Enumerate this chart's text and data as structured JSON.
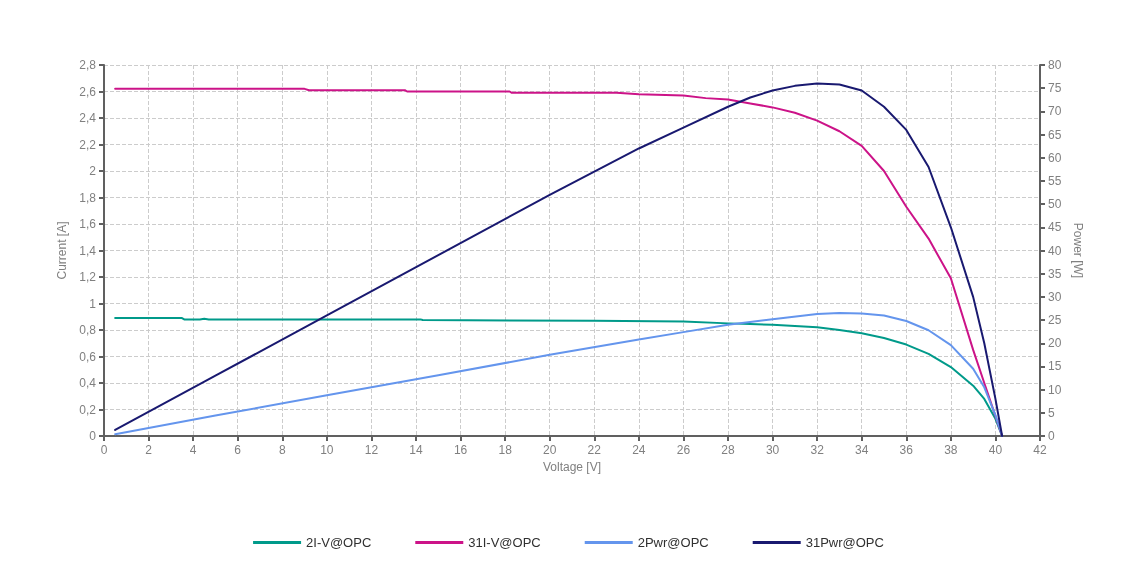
{
  "chart_data": {
    "type": "line",
    "xlabel": "Voltage [V]",
    "ylabel": "Current [A]",
    "y2label": "Power [W]",
    "xlim": [
      0,
      42
    ],
    "xticks": [
      0,
      2,
      4,
      6,
      8,
      10,
      12,
      14,
      16,
      18,
      20,
      22,
      24,
      26,
      28,
      30,
      32,
      34,
      36,
      38,
      40,
      42
    ],
    "ylim": [
      0,
      2.8
    ],
    "yticks": [
      0,
      {
        "value": 0.2,
        "label": "0,2"
      },
      {
        "value": 0.4,
        "label": "0,4"
      },
      {
        "value": 0.6,
        "label": "0,6"
      },
      {
        "value": 0.8,
        "label": "0,8"
      },
      1,
      {
        "value": 1.2,
        "label": "1,2"
      },
      {
        "value": 1.4,
        "label": "1,4"
      },
      {
        "value": 1.6,
        "label": "1,6"
      },
      {
        "value": 1.8,
        "label": "1,8"
      },
      2,
      {
        "value": 2.2,
        "label": "2,2"
      },
      {
        "value": 2.4,
        "label": "2,4"
      },
      {
        "value": 2.6,
        "label": "2,6"
      },
      {
        "value": 2.8,
        "label": "2,8"
      }
    ],
    "y2lim": [
      0,
      80
    ],
    "y2ticks": [
      0,
      5,
      10,
      15,
      20,
      25,
      30,
      35,
      40,
      45,
      50,
      55,
      60,
      65,
      70,
      75,
      80
    ],
    "grid": true,
    "legend": "bottom",
    "marker": "none",
    "line_style": "solid",
    "series": [
      {
        "name": "2I-V@OPC",
        "color": "#009a8a",
        "x": [
          0.5,
          3.5,
          3.6,
          4.3,
          4.5,
          4.7,
          14.2,
          14.3,
          22,
          26,
          28,
          29,
          30,
          31,
          32,
          33,
          34,
          35,
          36,
          37,
          38,
          39,
          39.5,
          40,
          40.3
        ],
        "values": [
          0.89,
          0.89,
          0.88,
          0.88,
          0.885,
          0.88,
          0.88,
          0.875,
          0.87,
          0.865,
          0.85,
          0.845,
          0.84,
          0.83,
          0.82,
          0.8,
          0.775,
          0.74,
          0.69,
          0.62,
          0.52,
          0.38,
          0.28,
          0.13,
          0
        ]
      },
      {
        "name": "31I-V@OPC",
        "color": "#cc1388",
        "x": [
          0.5,
          9,
          9.2,
          13.5,
          13.6,
          18.2,
          18.3,
          23,
          24,
          26,
          27,
          28,
          29,
          30,
          31,
          32,
          33,
          34,
          35,
          36,
          37,
          38,
          39,
          39.5,
          40,
          40.3
        ],
        "values": [
          2.62,
          2.62,
          2.61,
          2.61,
          2.6,
          2.6,
          2.59,
          2.59,
          2.58,
          2.57,
          2.55,
          2.54,
          2.51,
          2.48,
          2.44,
          2.38,
          2.3,
          2.19,
          2.0,
          1.73,
          1.49,
          1.19,
          0.65,
          0.4,
          0.15,
          0
        ]
      },
      {
        "name": "2Pwr@OPC",
        "color": "#6495ed",
        "axis": "y2",
        "x": [
          0.5,
          5,
          10,
          15,
          20,
          24,
          26,
          28,
          30,
          32,
          33,
          34,
          35,
          36,
          37,
          38,
          39,
          39.5,
          40,
          40.3
        ],
        "values": [
          0.4,
          4.4,
          8.8,
          13.1,
          17.5,
          20.8,
          22.4,
          24,
          25.2,
          26.3,
          26.5,
          26.4,
          26,
          24.8,
          22.8,
          19.6,
          14.5,
          10.5,
          4.5,
          0
        ]
      },
      {
        "name": "31Pwr@OPC",
        "color": "#191970",
        "axis": "y2",
        "x": [
          0.5,
          5,
          10,
          15,
          20,
          24,
          26,
          28,
          29,
          30,
          31,
          32,
          33,
          34,
          35,
          36,
          37,
          38,
          39,
          39.5,
          40,
          40.3
        ],
        "values": [
          1.3,
          13,
          26,
          39,
          52,
          62,
          66.5,
          71,
          73,
          74.5,
          75.5,
          76,
          75.8,
          74.5,
          71,
          66,
          58,
          45,
          30,
          20,
          8,
          0
        ]
      }
    ]
  }
}
